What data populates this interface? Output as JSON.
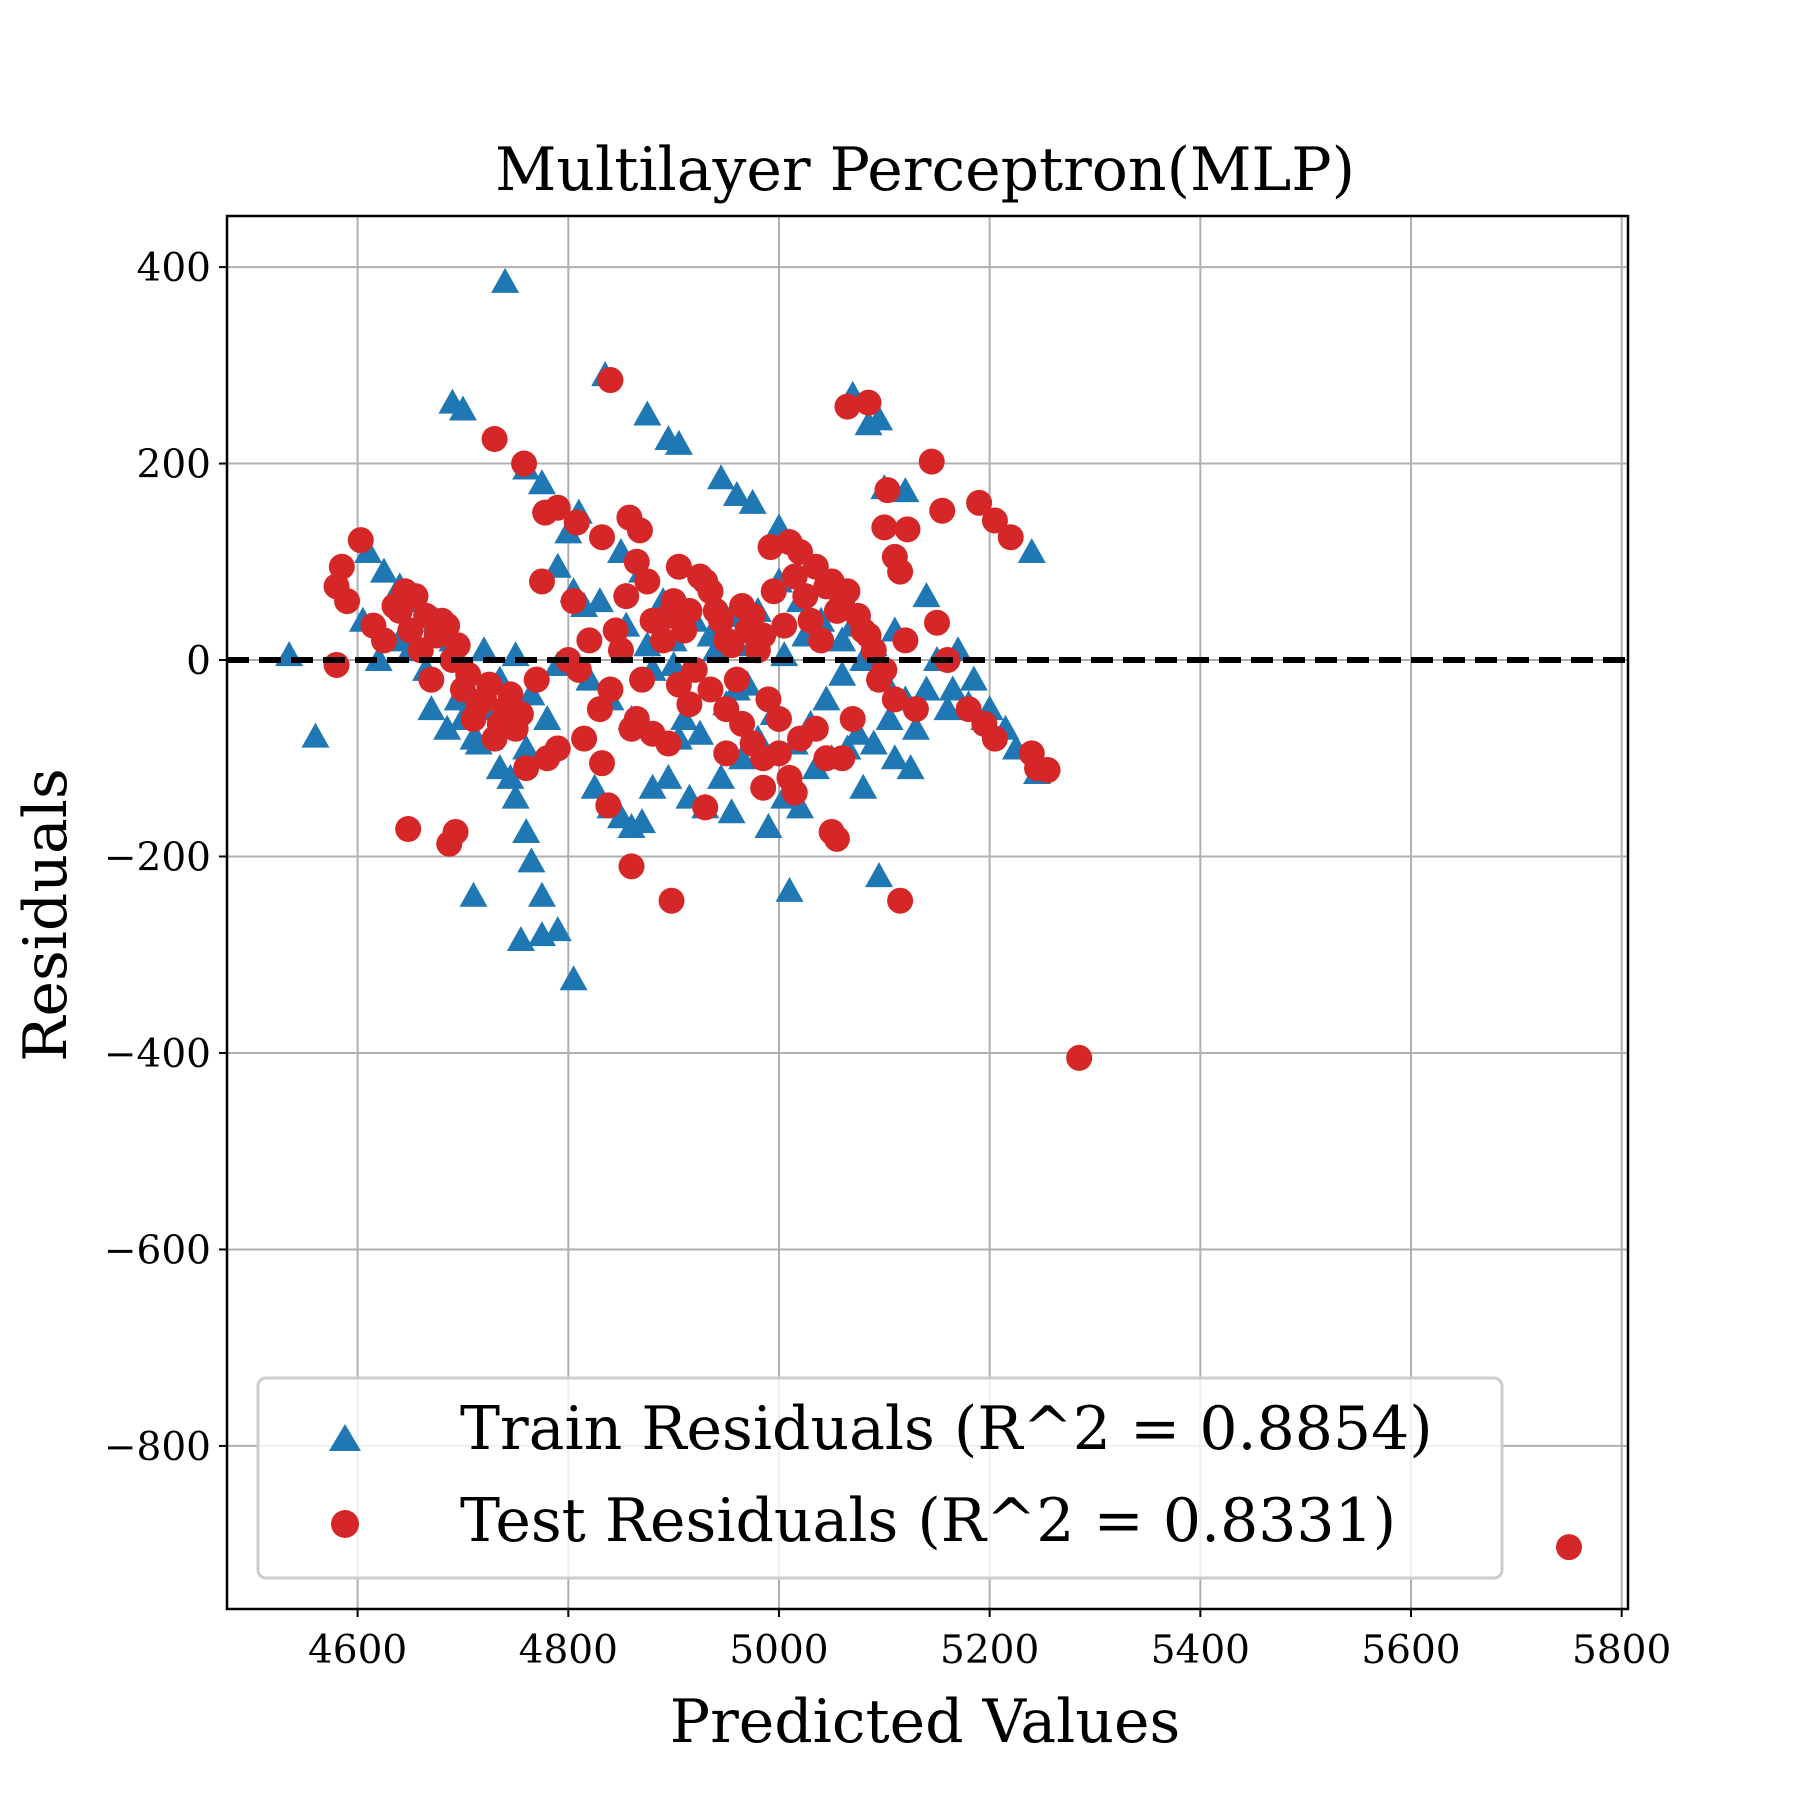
{
  "chart_data": {
    "type": "scatter",
    "title": "Multilayer Perceptron(MLP)",
    "xlabel": "Predicted Values",
    "ylabel": "Residuals",
    "xlim": [
      4476,
      5806
    ],
    "ylim": [
      -966,
      452
    ],
    "xticks": [
      4600,
      4800,
      5000,
      5200,
      5400,
      5600,
      5800
    ],
    "yticks": [
      400,
      200,
      0,
      -200,
      -400,
      -600,
      -800
    ],
    "xtick_labels": [
      "4600",
      "4800",
      "5000",
      "5200",
      "5400",
      "5600",
      "5800"
    ],
    "ytick_labels": [
      "400",
      "200",
      "0",
      "−200",
      "−400",
      "−600",
      "−800"
    ],
    "grid": true,
    "reference_line": {
      "y": 0,
      "style": "dashed",
      "color": "#000000"
    },
    "legend": {
      "position": "lower-left"
    },
    "series": [
      {
        "name": "Train Residuals (R^2 = 0.8854)",
        "marker": "triangle",
        "color": "#1f77b4",
        "points": [
          [
            4535,
            5
          ],
          [
            4560,
            -78
          ],
          [
            4610,
            110
          ],
          [
            4625,
            90
          ],
          [
            4640,
            75
          ],
          [
            4655,
            60
          ],
          [
            4675,
            40
          ],
          [
            4690,
            20
          ],
          [
            4700,
            -60
          ],
          [
            4710,
            -80
          ],
          [
            4715,
            -85
          ],
          [
            4720,
            -50
          ],
          [
            4735,
            -110
          ],
          [
            4745,
            -120
          ],
          [
            4750,
            -140
          ],
          [
            4760,
            -175
          ],
          [
            4765,
            -205
          ],
          [
            4775,
            -240
          ],
          [
            4710,
            -240
          ],
          [
            4755,
            -285
          ],
          [
            4775,
            -280
          ],
          [
            4790,
            -275
          ],
          [
            4805,
            -325
          ],
          [
            4740,
            385
          ],
          [
            4690,
            262
          ],
          [
            4700,
            255
          ],
          [
            4760,
            195
          ],
          [
            4775,
            180
          ],
          [
            4800,
            130
          ],
          [
            4835,
            290
          ],
          [
            4875,
            250
          ],
          [
            4895,
            225
          ],
          [
            4905,
            220
          ],
          [
            4945,
            185
          ],
          [
            4960,
            168
          ],
          [
            4975,
            160
          ],
          [
            5000,
            135
          ],
          [
            5010,
            120
          ],
          [
            5070,
            270
          ],
          [
            5085,
            240
          ],
          [
            5095,
            245
          ],
          [
            5100,
            175
          ],
          [
            5120,
            172
          ],
          [
            5140,
            65
          ],
          [
            5170,
            10
          ],
          [
            5185,
            -20
          ],
          [
            5200,
            -50
          ],
          [
            5215,
            -70
          ],
          [
            5225,
            -90
          ],
          [
            5240,
            110
          ],
          [
            5245,
            -115
          ],
          [
            4790,
            95
          ],
          [
            4805,
            70
          ],
          [
            4815,
            55
          ],
          [
            4825,
            -130
          ],
          [
            4840,
            -150
          ],
          [
            4850,
            -160
          ],
          [
            4860,
            -170
          ],
          [
            4870,
            -165
          ],
          [
            4880,
            -130
          ],
          [
            4895,
            -120
          ],
          [
            4905,
            -80
          ],
          [
            4915,
            -140
          ],
          [
            4930,
            -150
          ],
          [
            4945,
            -120
          ],
          [
            4955,
            -155
          ],
          [
            4965,
            -100
          ],
          [
            4980,
            -80
          ],
          [
            4990,
            -170
          ],
          [
            5005,
            -140
          ],
          [
            5020,
            -150
          ],
          [
            5010,
            -235
          ],
          [
            5035,
            -110
          ],
          [
            5050,
            -100
          ],
          [
            5065,
            -90
          ],
          [
            5080,
            -130
          ],
          [
            5095,
            -220
          ],
          [
            5110,
            -100
          ],
          [
            5125,
            -110
          ],
          [
            4820,
            -20
          ],
          [
            4840,
            -40
          ],
          [
            4860,
            -60
          ],
          [
            4880,
            -10
          ],
          [
            4900,
            20
          ],
          [
            4920,
            40
          ],
          [
            4940,
            10
          ],
          [
            4960,
            -30
          ],
          [
            4980,
            50
          ],
          [
            5000,
            80
          ],
          [
            5020,
            60
          ],
          [
            5040,
            40
          ],
          [
            5060,
            20
          ],
          [
            5080,
            0
          ],
          [
            5100,
            -20
          ],
          [
            5120,
            -40
          ],
          [
            5140,
            -30
          ],
          [
            5160,
            -50
          ],
          [
            4650,
            10
          ],
          [
            4665,
            -10
          ],
          [
            4680,
            30
          ],
          [
            4695,
            -40
          ],
          [
            4720,
            10
          ],
          [
            4735,
            -20
          ],
          [
            4750,
            5
          ],
          [
            4765,
            -35
          ],
          [
            4780,
            -60
          ],
          [
            4790,
            -5
          ],
          [
            4620,
            0
          ],
          [
            4605,
            40
          ],
          [
            4640,
            20
          ],
          [
            4670,
            -50
          ],
          [
            4685,
            -70
          ],
          [
            4700,
            -30
          ],
          [
            4725,
            -80
          ],
          [
            4745,
            -65
          ],
          [
            4760,
            -90
          ],
          [
            4810,
            150
          ],
          [
            4850,
            110
          ],
          [
            4870,
            90
          ],
          [
            4890,
            60
          ],
          [
            4910,
            -60
          ],
          [
            4925,
            -75
          ],
          [
            4950,
            -45
          ],
          [
            4970,
            -25
          ],
          [
            4995,
            -55
          ],
          [
            5015,
            -85
          ],
          [
            5030,
            -65
          ],
          [
            5045,
            -40
          ],
          [
            5060,
            -15
          ],
          [
            5075,
            -75
          ],
          [
            5090,
            -85
          ],
          [
            5105,
            -60
          ],
          [
            5130,
            -70
          ],
          [
            5150,
            0
          ],
          [
            5165,
            -30
          ],
          [
            5180,
            -45
          ],
          [
            5195,
            -60
          ],
          [
            4830,
            60
          ],
          [
            4855,
            35
          ],
          [
            4875,
            15
          ],
          [
            4900,
            -5
          ],
          [
            4935,
            25
          ],
          [
            4955,
            45
          ],
          [
            4975,
            15
          ],
          [
            5005,
            5
          ],
          [
            5025,
            25
          ],
          [
            5055,
            55
          ],
          [
            5070,
            35
          ],
          [
            5090,
            15
          ],
          [
            5110,
            30
          ]
        ]
      },
      {
        "name": "Test Residuals (R^2 = 0.8331)",
        "marker": "circle",
        "color": "#d62728",
        "points": [
          [
            4580,
            75
          ],
          [
            4585,
            95
          ],
          [
            4590,
            60
          ],
          [
            4580,
            -5
          ],
          [
            4603,
            122
          ],
          [
            4648,
            -172
          ],
          [
            4687,
            -187
          ],
          [
            4693,
            -175
          ],
          [
            4730,
            225
          ],
          [
            4758,
            200
          ],
          [
            4778,
            150
          ],
          [
            4790,
            155
          ],
          [
            4808,
            140
          ],
          [
            4840,
            285
          ],
          [
            4832,
            125
          ],
          [
            4858,
            145
          ],
          [
            4868,
            132
          ],
          [
            4898,
            -245
          ],
          [
            4860,
            -210
          ],
          [
            4838,
            -148
          ],
          [
            4832,
            -105
          ],
          [
            4930,
            -150
          ],
          [
            4950,
            -95
          ],
          [
            4975,
            -85
          ],
          [
            4985,
            -100
          ],
          [
            4992,
            115
          ],
          [
            5010,
            120
          ],
          [
            5020,
            110
          ],
          [
            5065,
            258
          ],
          [
            5085,
            262
          ],
          [
            5103,
            173
          ],
          [
            5100,
            135
          ],
          [
            5122,
            133
          ],
          [
            5145,
            202
          ],
          [
            5155,
            152
          ],
          [
            5110,
            105
          ],
          [
            5115,
            90
          ],
          [
            5150,
            38
          ],
          [
            5160,
            0
          ],
          [
            5190,
            160
          ],
          [
            5205,
            142
          ],
          [
            5220,
            125
          ],
          [
            5240,
            -95
          ],
          [
            5245,
            -110
          ],
          [
            5255,
            -112
          ],
          [
            5205,
            -80
          ],
          [
            5195,
            -65
          ],
          [
            5180,
            -50
          ],
          [
            5115,
            -245
          ],
          [
            5050,
            -175
          ],
          [
            5055,
            -182
          ],
          [
            5045,
            -100
          ],
          [
            5285,
            -405
          ],
          [
            5750,
            -903
          ],
          [
            4640,
            50
          ],
          [
            4650,
            30
          ],
          [
            4660,
            10
          ],
          [
            4670,
            -20
          ],
          [
            4680,
            40
          ],
          [
            4690,
            0
          ],
          [
            4700,
            -30
          ],
          [
            4710,
            -60
          ],
          [
            4720,
            -40
          ],
          [
            4730,
            -80
          ],
          [
            4740,
            -50
          ],
          [
            4750,
            -70
          ],
          [
            4760,
            -110
          ],
          [
            4770,
            -20
          ],
          [
            4780,
            -100
          ],
          [
            4790,
            -90
          ],
          [
            4800,
            0
          ],
          [
            4810,
            -10
          ],
          [
            4820,
            20
          ],
          [
            4830,
            -50
          ],
          [
            4840,
            -30
          ],
          [
            4850,
            10
          ],
          [
            4860,
            -70
          ],
          [
            4870,
            -20
          ],
          [
            4880,
            40
          ],
          [
            4890,
            20
          ],
          [
            4900,
            60
          ],
          [
            4910,
            30
          ],
          [
            4920,
            -10
          ],
          [
            4930,
            80
          ],
          [
            4940,
            50
          ],
          [
            4950,
            20
          ],
          [
            4960,
            -20
          ],
          [
            4970,
            30
          ],
          [
            4980,
            10
          ],
          [
            4990,
            -40
          ],
          [
            5000,
            -60
          ],
          [
            5010,
            -120
          ],
          [
            5020,
            -80
          ],
          [
            5030,
            40
          ],
          [
            5040,
            20
          ],
          [
            5050,
            80
          ],
          [
            5060,
            60
          ],
          [
            5070,
            -60
          ],
          [
            5080,
            30
          ],
          [
            5090,
            10
          ],
          [
            5100,
            -10
          ],
          [
            5110,
            -40
          ],
          [
            5120,
            20
          ],
          [
            5130,
            -50
          ],
          [
            4645,
            70
          ],
          [
            4655,
            65
          ],
          [
            4665,
            45
          ],
          [
            4675,
            25
          ],
          [
            4685,
            35
          ],
          [
            4695,
            15
          ],
          [
            4705,
            -15
          ],
          [
            4715,
            -45
          ],
          [
            4725,
            -25
          ],
          [
            4735,
            -65
          ],
          [
            4745,
            -35
          ],
          [
            4755,
            -55
          ],
          [
            4615,
            35
          ],
          [
            4625,
            20
          ],
          [
            4635,
            55
          ],
          [
            4775,
            80
          ],
          [
            4805,
            60
          ],
          [
            4815,
            -80
          ],
          [
            4845,
            30
          ],
          [
            4855,
            65
          ],
          [
            4865,
            100
          ],
          [
            4875,
            80
          ],
          [
            4895,
            45
          ],
          [
            4905,
            95
          ],
          [
            4915,
            50
          ],
          [
            4925,
            85
          ],
          [
            4935,
            70
          ],
          [
            4945,
            40
          ],
          [
            4955,
            15
          ],
          [
            4965,
            55
          ],
          [
            4975,
            45
          ],
          [
            4985,
            25
          ],
          [
            4995,
            70
          ],
          [
            5005,
            35
          ],
          [
            5015,
            85
          ],
          [
            5025,
            65
          ],
          [
            5035,
            95
          ],
          [
            5045,
            75
          ],
          [
            5055,
            50
          ],
          [
            5065,
            70
          ],
          [
            5075,
            45
          ],
          [
            5085,
            25
          ],
          [
            5095,
            -20
          ],
          [
            4950,
            -50
          ],
          [
            4965,
            -65
          ],
          [
            4985,
            -130
          ],
          [
            5000,
            -95
          ],
          [
            5015,
            -135
          ],
          [
            5035,
            -70
          ],
          [
            5060,
            -100
          ],
          [
            4865,
            -60
          ],
          [
            4880,
            -75
          ],
          [
            4895,
            -85
          ],
          [
            4915,
            -45
          ],
          [
            4935,
            -30
          ],
          [
            4905,
            -25
          ]
        ]
      }
    ]
  }
}
